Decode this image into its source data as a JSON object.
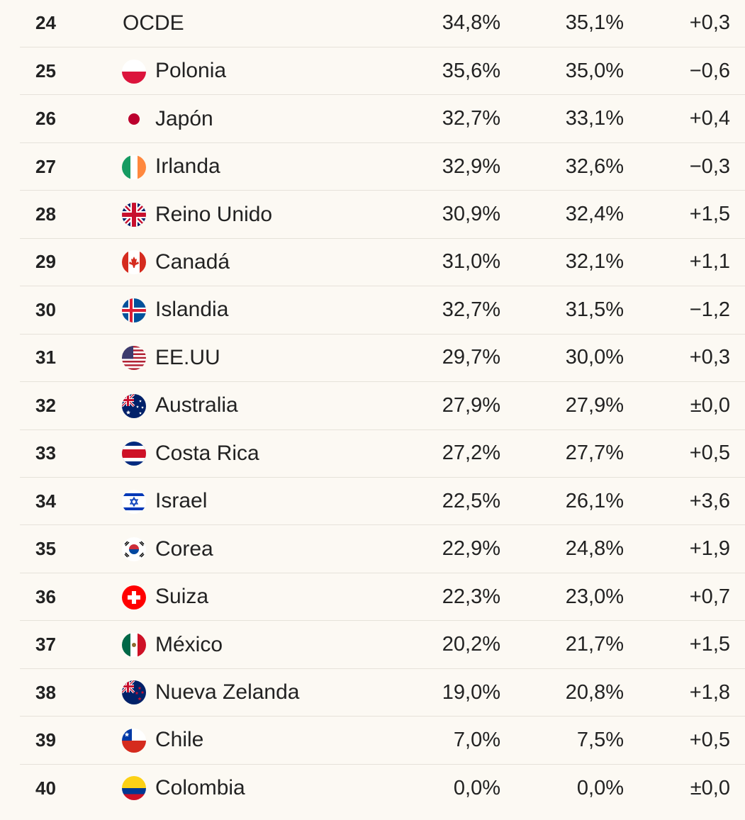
{
  "table": {
    "rows": [
      {
        "rank": 24,
        "country": "OCDE",
        "value_a": "34,8%",
        "value_b": "35,1%",
        "change": "+0,3"
      },
      {
        "rank": 25,
        "country": "Polonia",
        "value_a": "35,6%",
        "value_b": "35,0%",
        "change": "−0,6"
      },
      {
        "rank": 26,
        "country": "Japón",
        "value_a": "32,7%",
        "value_b": "33,1%",
        "change": "+0,4"
      },
      {
        "rank": 27,
        "country": "Irlanda",
        "value_a": "32,9%",
        "value_b": "32,6%",
        "change": "−0,3"
      },
      {
        "rank": 28,
        "country": "Reino Unido",
        "value_a": "30,9%",
        "value_b": "32,4%",
        "change": "+1,5"
      },
      {
        "rank": 29,
        "country": "Canadá",
        "value_a": "31,0%",
        "value_b": "32,1%",
        "change": "+1,1"
      },
      {
        "rank": 30,
        "country": "Islandia",
        "value_a": "32,7%",
        "value_b": "31,5%",
        "change": "−1,2"
      },
      {
        "rank": 31,
        "country": "EE.UU",
        "value_a": "29,7%",
        "value_b": "30,0%",
        "change": "+0,3"
      },
      {
        "rank": 32,
        "country": "Australia",
        "value_a": "27,9%",
        "value_b": "27,9%",
        "change": "±0,0"
      },
      {
        "rank": 33,
        "country": "Costa Rica",
        "value_a": "27,2%",
        "value_b": "27,7%",
        "change": "+0,5"
      },
      {
        "rank": 34,
        "country": "Israel",
        "value_a": "22,5%",
        "value_b": "26,1%",
        "change": "+3,6"
      },
      {
        "rank": 35,
        "country": "Corea",
        "value_a": "22,9%",
        "value_b": "24,8%",
        "change": "+1,9"
      },
      {
        "rank": 36,
        "country": "Suiza",
        "value_a": "22,3%",
        "value_b": "23,0%",
        "change": "+0,7"
      },
      {
        "rank": 37,
        "country": "México",
        "value_a": "20,2%",
        "value_b": "21,7%",
        "change": "+1,5"
      },
      {
        "rank": 38,
        "country": "Nueva Zelanda",
        "value_a": "19,0%",
        "value_b": "20,8%",
        "change": "+1,8"
      },
      {
        "rank": 39,
        "country": "Chile",
        "value_a": "7,0%",
        "value_b": "7,5%",
        "change": "+0,5"
      },
      {
        "rank": 40,
        "country": "Colombia",
        "value_a": "0,0%",
        "value_b": "0,0%",
        "change": "±0,0"
      }
    ]
  }
}
